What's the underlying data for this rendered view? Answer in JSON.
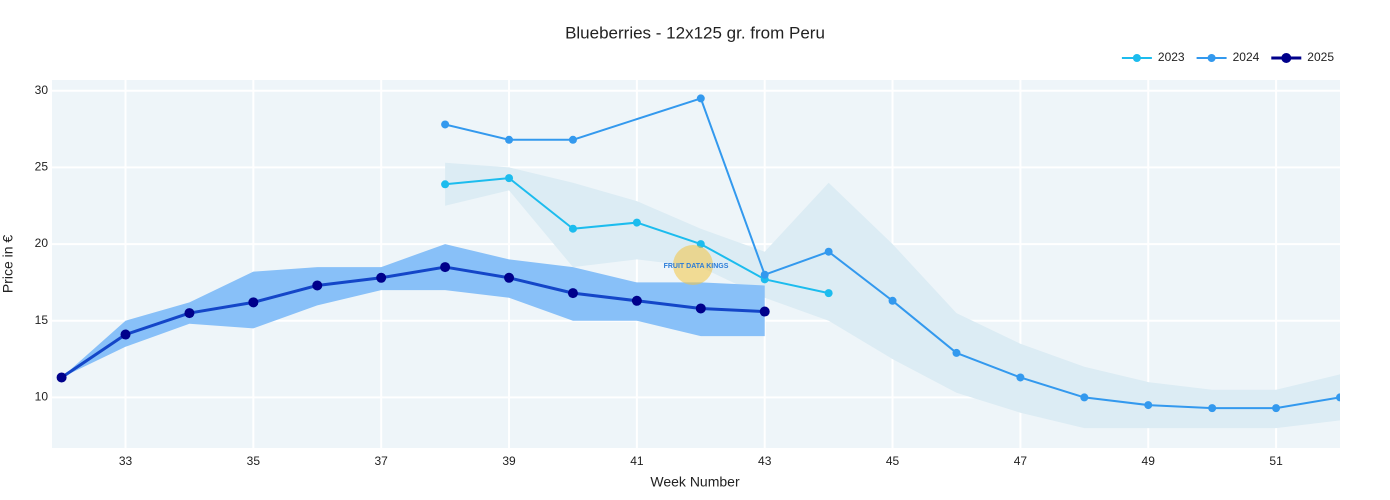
{
  "chart_data": {
    "type": "line",
    "title": "Blueberries - 12x125 gr. from Peru",
    "x_label": "Week Number",
    "y_label": "Price in €",
    "watermark": "FRUIT DATA KINGS",
    "xlim": [
      31.85,
      52
    ],
    "xticks": [
      33,
      35,
      37,
      39,
      41,
      43,
      45,
      47,
      49,
      51
    ],
    "ylim": [
      6.7,
      30.7
    ],
    "yticks": [
      10,
      15,
      20,
      25,
      30
    ],
    "grid": true,
    "legend": "top-right",
    "bands": [
      {
        "color": "#dcecf4",
        "x": [
          38,
          39,
          40,
          41,
          42,
          43,
          44,
          45,
          46,
          47,
          48,
          49,
          50,
          51,
          52
        ],
        "upper": [
          25.3,
          25.0,
          24.0,
          22.8,
          21.0,
          19.5,
          24.0,
          20.0,
          15.5,
          13.5,
          12.0,
          11.0,
          10.5,
          10.5,
          11.5
        ],
        "lower": [
          22.5,
          23.5,
          18.5,
          19.0,
          18.5,
          16.5,
          15.0,
          12.5,
          10.3,
          9.0,
          8.0,
          8.0,
          8.0,
          8.0,
          8.5
        ]
      },
      {
        "color": "#88c0f8",
        "x": [
          32,
          33,
          34,
          35,
          36,
          37,
          38,
          39,
          40,
          41,
          42,
          43
        ],
        "upper": [
          11.3,
          15.0,
          16.2,
          18.2,
          18.5,
          18.5,
          20.0,
          19.0,
          18.5,
          17.5,
          17.5,
          17.3
        ],
        "lower": [
          11.3,
          13.3,
          14.8,
          14.5,
          16.0,
          17.0,
          17.0,
          16.5,
          15.0,
          15.0,
          14.0,
          14.0
        ]
      }
    ],
    "series": [
      {
        "name": "2023",
        "color": "#1cbcee",
        "line_color": "#1cbcee",
        "width": 2,
        "radius": 4,
        "x": [
          38,
          39,
          40,
          41,
          42,
          43,
          44
        ],
        "values": [
          23.9,
          24.3,
          21.0,
          21.4,
          20.0,
          17.7,
          16.8
        ]
      },
      {
        "name": "2024",
        "color": "#3399ee",
        "line_color": "#3399ee",
        "width": 2,
        "radius": 4,
        "x": [
          38,
          39,
          40,
          42,
          43,
          44,
          45,
          46,
          47,
          48,
          49,
          50,
          51,
          52
        ],
        "values": [
          27.8,
          26.8,
          26.8,
          29.5,
          18.0,
          19.5,
          16.3,
          12.9,
          11.3,
          10.0,
          9.5,
          9.3,
          9.3,
          10.0
        ]
      },
      {
        "name": "2025",
        "color": "#00008b",
        "line_color": "#1446c8",
        "width": 3,
        "radius": 5,
        "x": [
          32,
          33,
          34,
          35,
          36,
          37,
          38,
          39,
          40,
          41,
          42,
          43
        ],
        "values": [
          11.3,
          14.1,
          15.5,
          16.2,
          17.3,
          17.8,
          18.5,
          17.8,
          16.8,
          16.3,
          15.8,
          15.6
        ]
      }
    ]
  }
}
